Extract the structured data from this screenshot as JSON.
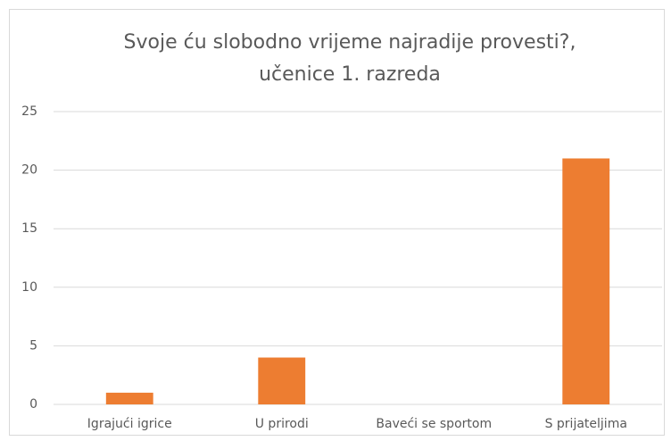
{
  "chart_data": {
    "type": "bar",
    "title": [
      "Svoje ću slobodno vrijeme najradije provesti?,",
      "učenice 1. razreda"
    ],
    "categories": [
      "Igrajući igrice",
      "U prirodi",
      "Baveći se sportom",
      "S prijateljima"
    ],
    "values": [
      1,
      4,
      0,
      21
    ],
    "color": "#ed7d31",
    "ylim": [
      0,
      25
    ],
    "yticks": [
      0,
      5,
      10,
      15,
      20,
      25
    ],
    "grid": true
  }
}
